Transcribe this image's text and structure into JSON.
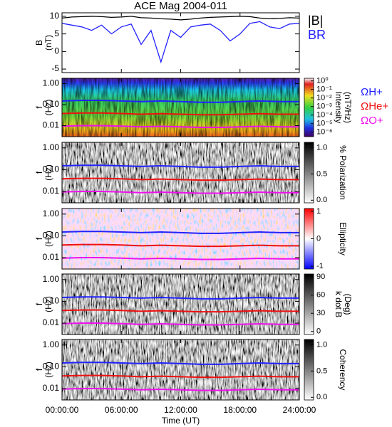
{
  "chart_data": [
    {
      "type": "line",
      "title": "ACE Mag 2004-011",
      "ylabel": [
        "B",
        "(nT)"
      ],
      "x": [
        0,
        1,
        2,
        3,
        4,
        5,
        6,
        7,
        8,
        9,
        10,
        11,
        12,
        13,
        14,
        15,
        16,
        17,
        18,
        19,
        20,
        21,
        22,
        23,
        24
      ],
      "xlim": [
        0,
        24
      ],
      "ylim": [
        -6,
        11
      ],
      "yticks": [
        -5,
        0,
        5,
        10
      ],
      "series": [
        {
          "name": "|B|",
          "color": "#000000",
          "values": [
            9.5,
            9.8,
            9.9,
            10,
            9.9,
            9.7,
            9.8,
            10,
            9.6,
            9.5,
            9.3,
            9.2,
            9.0,
            9.2,
            9.5,
            9.7,
            9.8,
            9.9,
            10,
            9.9,
            9.5,
            9.3,
            9.4,
            9.6,
            9.5
          ]
        },
        {
          "name": "BR",
          "color": "#2222ff",
          "values": [
            8,
            7.5,
            7,
            6,
            7.5,
            5,
            7,
            7.8,
            2,
            6,
            -3,
            6,
            4,
            7,
            7.5,
            7.8,
            6,
            3,
            5,
            8,
            8.5,
            7,
            6.5,
            7.8,
            8
          ]
        }
      ]
    },
    {
      "type": "spectrogram",
      "background": "intensity",
      "ylabel": [
        "f",
        "(Hz)"
      ],
      "log_y": true,
      "legend": true,
      "x": [
        0,
        2,
        4,
        6,
        8,
        10,
        12,
        14,
        16,
        18,
        20,
        22,
        24
      ],
      "xlim": [
        0,
        24
      ],
      "ylim": [
        0.003,
        1.8
      ],
      "yticks": [
        {
          "value": 1,
          "label": "1.00"
        },
        {
          "value": 0.1,
          "label": "0.10"
        },
        {
          "value": 0.01,
          "label": "0.01"
        }
      ],
      "colorbar": {
        "cmap": "jet",
        "log": true,
        "lim": [
          3e-07,
          2
        ],
        "label": [
          "Intensity",
          "(nT²/Hz)"
        ],
        "ticks": [
          {
            "value": 1,
            "label": "10⁰"
          },
          {
            "value": 0.1,
            "label": "10⁻¹"
          },
          {
            "value": 0.01,
            "label": "10⁻²"
          },
          {
            "value": 0.001,
            "label": "10⁻³"
          },
          {
            "value": 0.0001,
            "label": "10⁻⁴"
          },
          {
            "value": 1e-05,
            "label": "10⁻⁵"
          },
          {
            "value": 1e-06,
            "label": "10⁻⁶"
          }
        ]
      },
      "series": [
        {
          "name": "ΩH+",
          "color": "#2222ff",
          "values": [
            0.15,
            0.16,
            0.16,
            0.15,
            0.14,
            0.15,
            0.14,
            0.13,
            0.13,
            0.14,
            0.15,
            0.14,
            0.14
          ]
        },
        {
          "name": "ΩHe+",
          "color": "#ee1111",
          "values": [
            0.038,
            0.04,
            0.04,
            0.038,
            0.035,
            0.037,
            0.035,
            0.033,
            0.033,
            0.035,
            0.037,
            0.035,
            0.035
          ]
        },
        {
          "name": "ΩO+",
          "color": "#ee11ee",
          "values": [
            0.0095,
            0.01,
            0.01,
            0.0095,
            0.0088,
            0.0093,
            0.0088,
            0.0083,
            0.0083,
            0.0088,
            0.0093,
            0.0088,
            0.0088
          ]
        }
      ]
    },
    {
      "type": "spectrogram",
      "background": "gray",
      "ylabel": [
        "f",
        "(Hz)"
      ],
      "log_y": true,
      "x": [
        0,
        2,
        4,
        6,
        8,
        10,
        12,
        14,
        16,
        18,
        20,
        22,
        24
      ],
      "xlim": [
        0,
        24
      ],
      "ylim": [
        0.003,
        1.8
      ],
      "yticks": [
        {
          "value": 1,
          "label": "1.00"
        },
        {
          "value": 0.1,
          "label": "0.10"
        },
        {
          "value": 0.01,
          "label": "0.01"
        }
      ],
      "colorbar": {
        "cmap": "gray",
        "lim": [
          -0.05,
          1.1
        ],
        "label": [
          "% Polarization"
        ],
        "ticks": [
          {
            "value": 1,
            "label": "1.0"
          },
          {
            "value": 0.5,
            "label": "0.5"
          },
          {
            "value": 0,
            "label": "0.0"
          }
        ]
      },
      "series": [
        {
          "color": "#2222ff",
          "values": [
            0.15,
            0.16,
            0.16,
            0.15,
            0.14,
            0.15,
            0.14,
            0.13,
            0.13,
            0.14,
            0.15,
            0.14,
            0.14
          ]
        },
        {
          "color": "#ee1111",
          "values": [
            0.038,
            0.04,
            0.04,
            0.038,
            0.035,
            0.037,
            0.035,
            0.033,
            0.033,
            0.035,
            0.037,
            0.035,
            0.035
          ]
        },
        {
          "color": "#ee11ee",
          "values": [
            0.0095,
            0.01,
            0.01,
            0.0095,
            0.0088,
            0.0093,
            0.0088,
            0.0083,
            0.0083,
            0.0088,
            0.0093,
            0.0088,
            0.0088
          ]
        }
      ]
    },
    {
      "type": "spectrogram",
      "background": "bwr",
      "ylabel": [
        "f",
        "(Hz)"
      ],
      "log_y": true,
      "x": [
        0,
        2,
        4,
        6,
        8,
        10,
        12,
        14,
        16,
        18,
        20,
        22,
        24
      ],
      "xlim": [
        0,
        24
      ],
      "ylim": [
        0.003,
        1.8
      ],
      "yticks": [
        {
          "value": 1,
          "label": "1.00"
        },
        {
          "value": 0.1,
          "label": "0.10"
        },
        {
          "value": 0.01,
          "label": "0.01"
        }
      ],
      "colorbar": {
        "cmap": "bwr",
        "lim": [
          -1.1,
          1.1
        ],
        "label": [
          "Ellipticity"
        ],
        "ticks": [
          1,
          0,
          -1
        ]
      },
      "series": [
        {
          "color": "#2222ff",
          "values": [
            0.15,
            0.16,
            0.16,
            0.15,
            0.14,
            0.15,
            0.14,
            0.13,
            0.13,
            0.14,
            0.15,
            0.14,
            0.14
          ]
        },
        {
          "color": "#ee1111",
          "values": [
            0.038,
            0.04,
            0.04,
            0.038,
            0.035,
            0.037,
            0.035,
            0.033,
            0.033,
            0.035,
            0.037,
            0.035,
            0.035
          ]
        },
        {
          "color": "#ee11ee",
          "values": [
            0.0095,
            0.01,
            0.01,
            0.0095,
            0.0088,
            0.0093,
            0.0088,
            0.0083,
            0.0083,
            0.0088,
            0.0093,
            0.0088,
            0.0088
          ]
        }
      ]
    },
    {
      "type": "spectrogram",
      "background": "gray",
      "ylabel": [
        "f",
        "(Hz)"
      ],
      "log_y": true,
      "x": [
        0,
        2,
        4,
        6,
        8,
        10,
        12,
        14,
        16,
        18,
        20,
        22,
        24
      ],
      "xlim": [
        0,
        24
      ],
      "ylim": [
        0.003,
        1.8
      ],
      "yticks": [
        {
          "value": 1,
          "label": "1.00"
        },
        {
          "value": 0.1,
          "label": "0.10"
        },
        {
          "value": 0.01,
          "label": "0.01"
        }
      ],
      "colorbar": {
        "cmap": "gray",
        "lim": [
          -5,
          95
        ],
        "label": [
          "k dot B",
          "(Deg)"
        ],
        "ticks": [
          90,
          60,
          30,
          0
        ]
      },
      "series": [
        {
          "color": "#2222ff",
          "values": [
            0.15,
            0.16,
            0.16,
            0.15,
            0.14,
            0.15,
            0.14,
            0.13,
            0.13,
            0.14,
            0.15,
            0.14,
            0.14
          ]
        },
        {
          "color": "#ee1111",
          "values": [
            0.038,
            0.04,
            0.04,
            0.038,
            0.035,
            0.037,
            0.035,
            0.033,
            0.033,
            0.035,
            0.037,
            0.035,
            0.035
          ]
        },
        {
          "color": "#ee11ee",
          "values": [
            0.0095,
            0.01,
            0.01,
            0.0095,
            0.0088,
            0.0093,
            0.0088,
            0.0083,
            0.0083,
            0.0088,
            0.0093,
            0.0088,
            0.0088
          ]
        }
      ]
    },
    {
      "type": "spectrogram",
      "background": "gray",
      "ylabel": [
        "f",
        "(Hz)"
      ],
      "log_y": true,
      "x": [
        0,
        2,
        4,
        6,
        8,
        10,
        12,
        14,
        16,
        18,
        20,
        22,
        24
      ],
      "xlim": [
        0,
        24
      ],
      "ylim": [
        0.003,
        1.8
      ],
      "yticks": [
        {
          "value": 1,
          "label": "1.00"
        },
        {
          "value": 0.1,
          "label": "0.10"
        },
        {
          "value": 0.01,
          "label": "0.01"
        }
      ],
      "colorbar": {
        "cmap": "gray",
        "lim": [
          -0.05,
          1.1
        ],
        "label": [
          "Coherency"
        ],
        "ticks": [
          {
            "value": 1,
            "label": "1.0"
          },
          {
            "value": 0.5,
            "label": "0.5"
          },
          {
            "value": 0,
            "label": "0.0"
          }
        ]
      },
      "xlabel": "Time (UT)",
      "xticks": [
        {
          "value": 0,
          "label": "00:00:00"
        },
        {
          "value": 6,
          "label": "06:00:00"
        },
        {
          "value": 12,
          "label": "12:00:00"
        },
        {
          "value": 18,
          "label": "18:00:00"
        },
        {
          "value": 24,
          "label": "24:00:00"
        }
      ],
      "series": [
        {
          "color": "#2222ff",
          "values": [
            0.15,
            0.16,
            0.16,
            0.15,
            0.14,
            0.15,
            0.14,
            0.13,
            0.13,
            0.14,
            0.15,
            0.14,
            0.14
          ]
        },
        {
          "color": "#ee1111",
          "values": [
            0.038,
            0.04,
            0.04,
            0.038,
            0.035,
            0.037,
            0.035,
            0.033,
            0.033,
            0.035,
            0.037,
            0.035,
            0.035
          ]
        },
        {
          "color": "#ee11ee",
          "values": [
            0.0095,
            0.01,
            0.01,
            0.0095,
            0.0088,
            0.0093,
            0.0088,
            0.0083,
            0.0083,
            0.0088,
            0.0093,
            0.0088,
            0.0088
          ]
        }
      ]
    }
  ]
}
